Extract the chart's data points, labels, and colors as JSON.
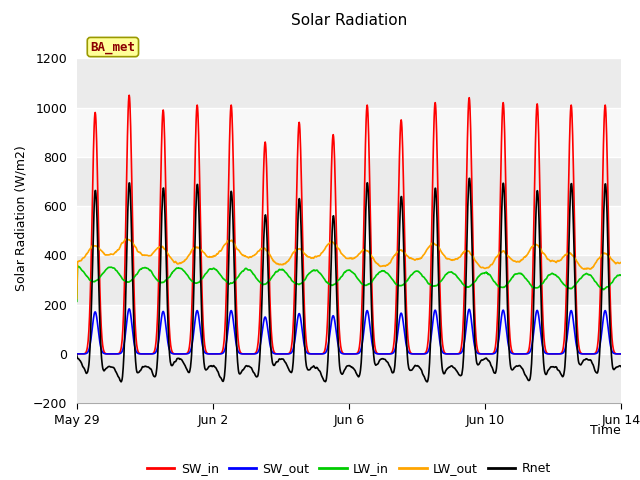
{
  "title": "Solar Radiation",
  "ylabel": "Solar Radiation (W/m2)",
  "xlabel": "Time",
  "ylim": [
    -200,
    1300
  ],
  "yticks": [
    -200,
    0,
    200,
    400,
    600,
    800,
    1000,
    1200
  ],
  "num_days": 17,
  "dt_hours": 0.25,
  "colors": {
    "SW_in": "#FF0000",
    "SW_out": "#0000FF",
    "LW_in": "#00CC00",
    "LW_out": "#FFA500",
    "Rnet": "#000000"
  },
  "line_width": 1.2,
  "annotation_text": "BA_met",
  "xtick_labels": [
    "May 29",
    "Jun 2",
    "Jun 6",
    "Jun 10",
    "Jun 14"
  ],
  "xtick_positions": [
    0,
    4,
    8,
    12,
    16
  ],
  "plot_bg_color": "#EBEBEB",
  "grid_color": "#FFFFFF",
  "band_color_light": "#F5F5F5",
  "band_color_dark": "#E0E0E0"
}
